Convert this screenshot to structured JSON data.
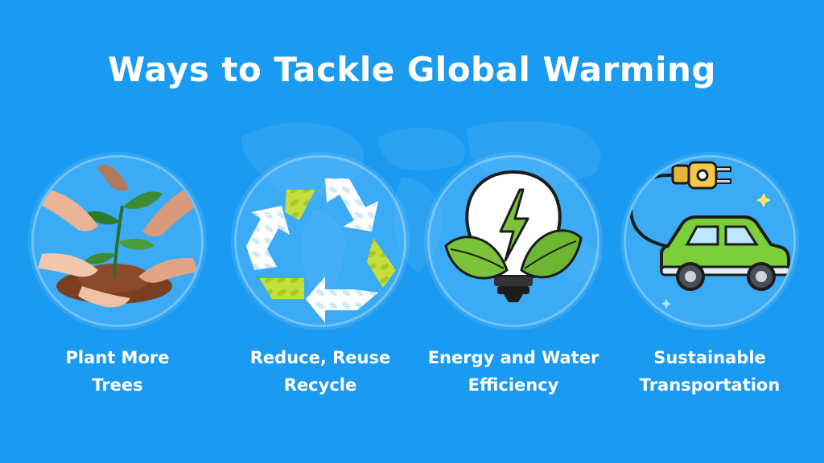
{
  "title": "Ways to Tackle Global Warming",
  "colors": {
    "background": "#1a9af0",
    "circle": "#5ab9fa",
    "text": "#ffffff",
    "leaf": "#6fc13a",
    "car": "#7ccf3a"
  },
  "items": [
    {
      "icon": "planting-hands-icon",
      "line1": "Plant More",
      "line2": "Trees"
    },
    {
      "icon": "recycle-icon",
      "line1": "Reduce, Reuse",
      "line2": "Recycle"
    },
    {
      "icon": "eco-lightbulb-icon",
      "line1": "Energy and Water",
      "line2": "Efficiency"
    },
    {
      "icon": "electric-car-icon",
      "line1": "Sustainable",
      "line2": "Transportation"
    }
  ]
}
